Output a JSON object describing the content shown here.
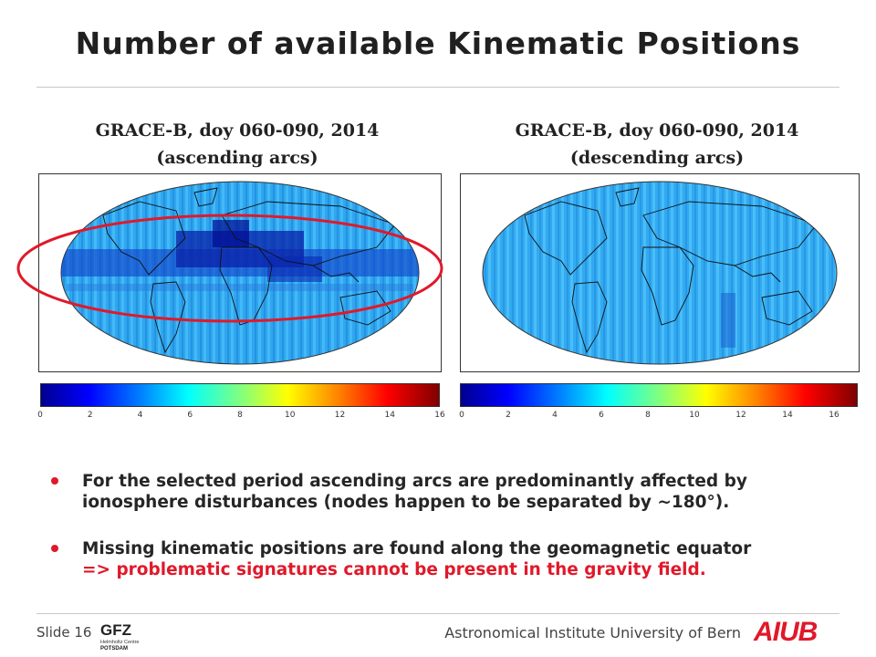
{
  "slide": {
    "title": "Number of available Kinematic Positions",
    "left_panel": {
      "title_line1": "GRACE-B, doy 060-090, 2014",
      "title_line2": "(ascending arcs)"
    },
    "right_panel": {
      "title_line1": "GRACE-B, doy 060-090, 2014",
      "title_line2": "(descending arcs)"
    },
    "colorbar_ticks": [
      "0",
      "2",
      "4",
      "6",
      "8",
      "10",
      "12",
      "14",
      "16"
    ],
    "bullets": [
      {
        "text": "For the selected period ascending arcs are predominantly affected by ionosphere disturbances (nodes happen to be separated by ~180°)."
      },
      {
        "text_black": "Missing kinematic positions are found along the geomagnetic equator",
        "text_red": "=> problematic signatures cannot be present in the gravity field."
      }
    ],
    "footer": {
      "slide_label": "Slide 16",
      "institute": "Astronomical Institute University of Bern",
      "logo_right": "AIUB",
      "logo_left_text": "GFZ",
      "logo_left_sub1": "Helmholtz Centre",
      "logo_left_sub2": "POTSDAM"
    },
    "colors": {
      "accent_red": "#e0192a",
      "ocean_base": "#2aa8f0"
    }
  }
}
